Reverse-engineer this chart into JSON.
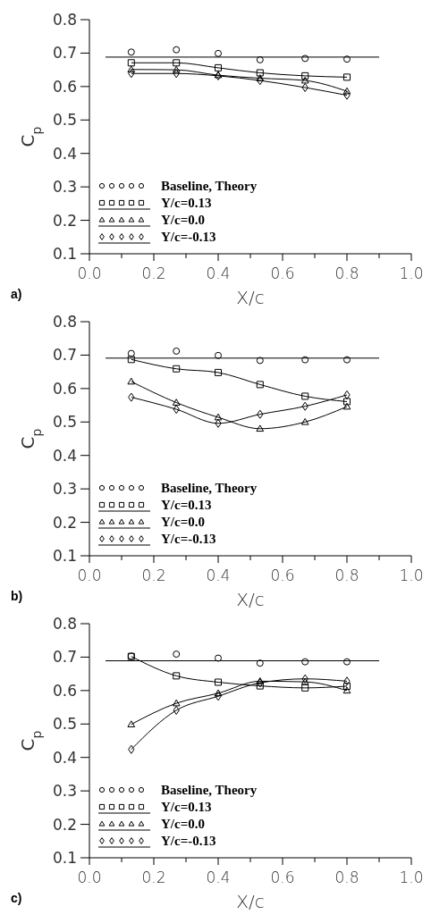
{
  "chart_data": [
    {
      "type": "line",
      "xlabel": "X/c",
      "ylabel": "C$_{p}$",
      "annotations": [
        "a)"
      ],
      "xlim": [
        0,
        1
      ],
      "ylim": [
        0.1,
        0.8
      ],
      "xticks": [
        {
          "value": 0,
          "label": "0.0"
        },
        {
          "value": 0.1,
          "label": null
        },
        {
          "value": 0.2,
          "label": "0.2"
        },
        {
          "value": 0.3,
          "label": null
        },
        {
          "value": 0.4,
          "label": "0.4"
        },
        {
          "value": 0.5,
          "label": null
        },
        {
          "value": 0.6,
          "label": "0.6"
        },
        {
          "value": 0.7,
          "label": null
        },
        {
          "value": 0.8,
          "label": "0.8"
        },
        {
          "value": 0.9,
          "label": null
        },
        {
          "value": 1,
          "label": "1.0"
        }
      ],
      "yticks": [
        0.1,
        0.2,
        0.3,
        0.4,
        0.5,
        0.6,
        0.7,
        0.8
      ],
      "grid": false,
      "legend": "bottom left",
      "series": [
        {
          "color": "#000000",
          "marker": "none",
          "x": [
            0.05,
            0.9
          ],
          "values": [
            0.688,
            0.688
          ]
        },
        {
          "type": "scatter",
          "name": "Baseline, Theory",
          "color": "#000000",
          "marker": "circle",
          "x": [
            0.13,
            0.27,
            0.4,
            0.53,
            0.67,
            0.8
          ],
          "values": [
            0.703,
            0.71,
            0.699,
            0.68,
            0.684,
            0.682
          ]
        },
        {
          "name": "Y/c=0.13",
          "color": "#000000",
          "marker": "square",
          "x": [
            0.13,
            0.27,
            0.4,
            0.53,
            0.67,
            0.8
          ],
          "values": [
            0.671,
            0.671,
            0.656,
            0.641,
            0.632,
            0.628
          ]
        },
        {
          "name": "Y/c=0.0",
          "color": "#000000",
          "marker": "triangle",
          "x": [
            0.13,
            0.27,
            0.4,
            0.53,
            0.67,
            0.8
          ],
          "values": [
            0.651,
            0.65,
            0.634,
            0.625,
            0.618,
            0.586
          ]
        },
        {
          "name": "Y/c=-0.13",
          "color": "#000000",
          "marker": "diamond",
          "x": [
            0.13,
            0.27,
            0.4,
            0.53,
            0.67,
            0.8
          ],
          "values": [
            0.639,
            0.639,
            0.632,
            0.618,
            0.597,
            0.574
          ]
        }
      ]
    },
    {
      "type": "line",
      "xlabel": "X/c",
      "ylabel": "C$_{p}$",
      "annotations": [
        "b)"
      ],
      "xlim": [
        0,
        1
      ],
      "ylim": [
        0.1,
        0.8
      ],
      "xticks": [
        {
          "value": 0,
          "label": "0.0"
        },
        {
          "value": 0.1,
          "label": null
        },
        {
          "value": 0.2,
          "label": "0.2"
        },
        {
          "value": 0.3,
          "label": null
        },
        {
          "value": 0.4,
          "label": "0.4"
        },
        {
          "value": 0.5,
          "label": null
        },
        {
          "value": 0.6,
          "label": "0.6"
        },
        {
          "value": 0.7,
          "label": null
        },
        {
          "value": 0.8,
          "label": "0.8"
        },
        {
          "value": 0.9,
          "label": null
        },
        {
          "value": 1,
          "label": "1.0"
        }
      ],
      "yticks": [
        0.1,
        0.2,
        0.3,
        0.4,
        0.5,
        0.6,
        0.7,
        0.8
      ],
      "grid": false,
      "legend": "bottom left",
      "series": [
        {
          "color": "#000000",
          "marker": "none",
          "x": [
            0.05,
            0.9
          ],
          "values": [
            0.691,
            0.691
          ]
        },
        {
          "type": "scatter",
          "name": "Baseline, Theory",
          "color": "#000000",
          "marker": "circle",
          "x": [
            0.13,
            0.27,
            0.4,
            0.53,
            0.67,
            0.8
          ],
          "values": [
            0.705,
            0.712,
            0.699,
            0.684,
            0.686,
            0.686
          ]
        },
        {
          "name": "Y/c=0.13",
          "color": "#000000",
          "marker": "square",
          "x": [
            0.13,
            0.27,
            0.4,
            0.53,
            0.67,
            0.8
          ],
          "values": [
            0.687,
            0.659,
            0.648,
            0.612,
            0.577,
            0.561
          ]
        },
        {
          "name": "Y/c=0.0",
          "color": "#000000",
          "marker": "triangle",
          "x": [
            0.13,
            0.27,
            0.4,
            0.53,
            0.67,
            0.8
          ],
          "values": [
            0.621,
            0.558,
            0.514,
            0.48,
            0.5,
            0.546
          ]
        },
        {
          "name": "Y/c=-0.13",
          "color": "#000000",
          "marker": "diamond",
          "x": [
            0.13,
            0.27,
            0.4,
            0.53,
            0.67,
            0.8
          ],
          "values": [
            0.574,
            0.538,
            0.496,
            0.523,
            0.547,
            0.581
          ]
        }
      ]
    },
    {
      "type": "line",
      "xlabel": "X/c",
      "ylabel": "C$_{p}$",
      "annotations": [
        "c)"
      ],
      "xlim": [
        0,
        1
      ],
      "ylim": [
        0.1,
        0.8
      ],
      "xticks": [
        {
          "value": 0,
          "label": "0.0"
        },
        {
          "value": 0.1,
          "label": null
        },
        {
          "value": 0.2,
          "label": "0.2"
        },
        {
          "value": 0.3,
          "label": null
        },
        {
          "value": 0.4,
          "label": "0.4"
        },
        {
          "value": 0.5,
          "label": null
        },
        {
          "value": 0.6,
          "label": "0.6"
        },
        {
          "value": 0.7,
          "label": null
        },
        {
          "value": 0.8,
          "label": "0.8"
        },
        {
          "value": 0.9,
          "label": null
        },
        {
          "value": 1,
          "label": "1.0"
        }
      ],
      "yticks": [
        0.1,
        0.2,
        0.3,
        0.4,
        0.5,
        0.6,
        0.7,
        0.8
      ],
      "grid": false,
      "legend": "bottom left",
      "series": [
        {
          "color": "#000000",
          "marker": "none",
          "x": [
            0.05,
            0.9
          ],
          "values": [
            0.689,
            0.689
          ]
        },
        {
          "type": "scatter",
          "name": "Baseline, Theory",
          "color": "#000000",
          "marker": "circle",
          "x": [
            0.13,
            0.27,
            0.4,
            0.53,
            0.67,
            0.8
          ],
          "values": [
            0.703,
            0.709,
            0.697,
            0.682,
            0.686,
            0.686
          ]
        },
        {
          "name": "Y/c=0.13",
          "color": "#000000",
          "marker": "square",
          "x": [
            0.13,
            0.27,
            0.4,
            0.53,
            0.67,
            0.8
          ],
          "values": [
            0.702,
            0.644,
            0.625,
            0.614,
            0.608,
            0.613
          ]
        },
        {
          "name": "Y/c=0.0",
          "color": "#000000",
          "marker": "triangle",
          "x": [
            0.13,
            0.27,
            0.4,
            0.53,
            0.67,
            0.8
          ],
          "values": [
            0.499,
            0.562,
            0.592,
            0.628,
            0.626,
            0.6
          ]
        },
        {
          "name": "Y/c=-0.13",
          "color": "#000000",
          "marker": "diamond",
          "x": [
            0.13,
            0.27,
            0.4,
            0.53,
            0.67,
            0.8
          ],
          "values": [
            0.424,
            0.541,
            0.583,
            0.623,
            0.635,
            0.628
          ]
        }
      ]
    }
  ]
}
